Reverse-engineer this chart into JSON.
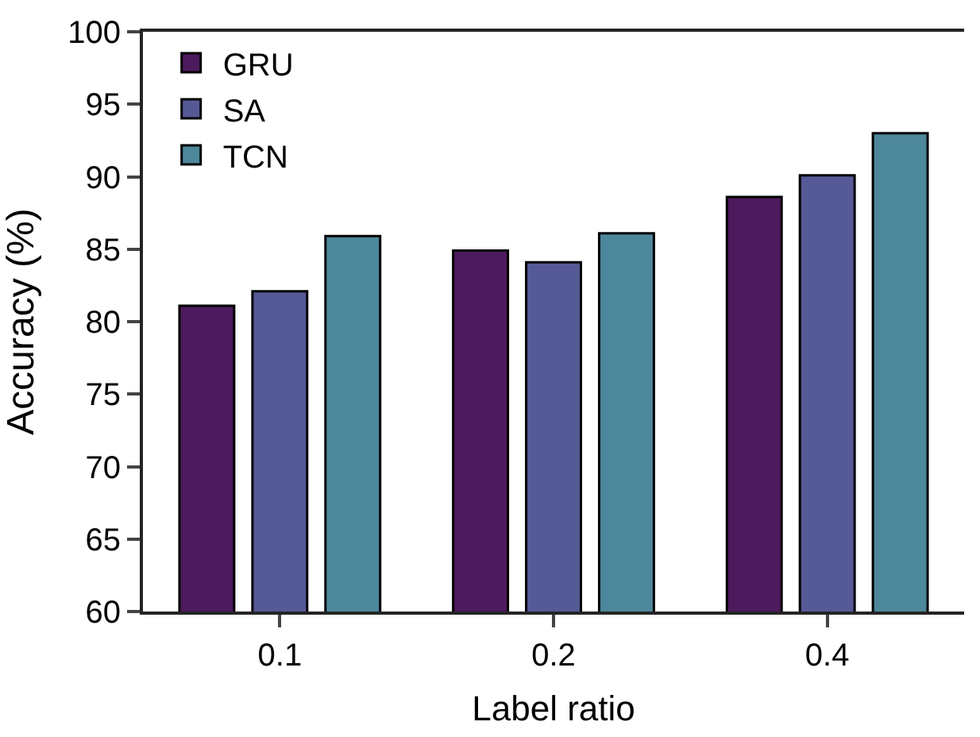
{
  "chart_data": {
    "type": "bar",
    "xlabel": "Label ratio",
    "ylabel": "Accuracy (%)",
    "categories": [
      "0.1",
      "0.2",
      "0.4"
    ],
    "series": [
      {
        "name": "GRU",
        "color": "#4e1a5e",
        "values": [
          81.1,
          84.9,
          88.6
        ]
      },
      {
        "name": "SA",
        "color": "#555995",
        "values": [
          82.1,
          84.1,
          90.1
        ]
      },
      {
        "name": "TCN",
        "color": "#4d879b",
        "values": [
          85.9,
          86.1,
          93.0
        ]
      }
    ],
    "ylim": [
      60,
      100
    ],
    "yticks": [
      60,
      65,
      70,
      75,
      80,
      85,
      90,
      95,
      100
    ],
    "grid": false,
    "legend": "top left"
  }
}
